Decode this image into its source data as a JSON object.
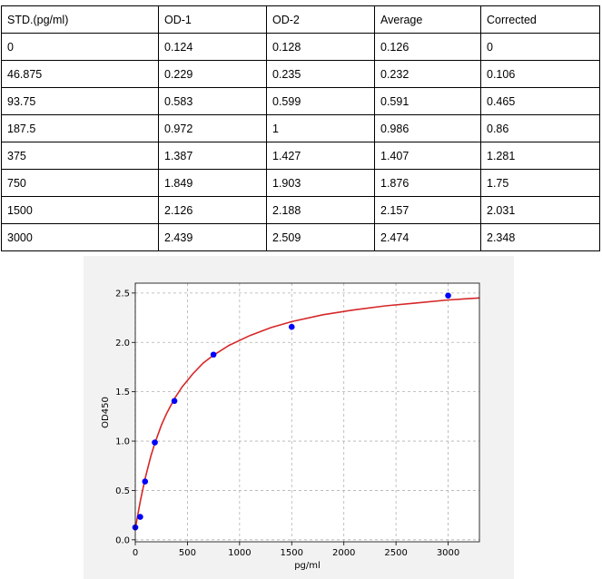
{
  "table": {
    "headers": [
      "STD.(pg/ml)",
      "OD-1",
      "OD-2",
      "Average",
      "Corrected"
    ],
    "rows": [
      [
        "0",
        "0.124",
        "0.128",
        "0.126",
        "0"
      ],
      [
        "46.875",
        "0.229",
        "0.235",
        "0.232",
        "0.106"
      ],
      [
        "93.75",
        "0.583",
        "0.599",
        "0.591",
        "0.465"
      ],
      [
        "187.5",
        "0.972",
        "1",
        "0.986",
        "0.86"
      ],
      [
        "375",
        "1.387",
        "1.427",
        "1.407",
        "1.281"
      ],
      [
        "750",
        "1.849",
        "1.903",
        "1.876",
        "1.75"
      ],
      [
        "1500",
        "2.126",
        "2.188",
        "2.157",
        "2.031"
      ],
      [
        "3000",
        "2.439",
        "2.509",
        "2.474",
        "2.348"
      ]
    ]
  },
  "chart_data": {
    "type": "scatter",
    "title": "",
    "xlabel": "pg/ml",
    "ylabel": "OD450",
    "xlim": [
      0,
      3300
    ],
    "ylim": [
      -0.02,
      2.6
    ],
    "xticks": [
      0,
      500,
      1000,
      1500,
      2000,
      2500,
      3000
    ],
    "xtick_labels": [
      "0",
      "500",
      "1000",
      "1500",
      "2000",
      "2500",
      "3000"
    ],
    "yticks": [
      0.0,
      0.5,
      1.0,
      1.5,
      2.0,
      2.5
    ],
    "ytick_labels": [
      "0.0",
      "0.5",
      "1.0",
      "1.5",
      "2.0",
      "2.5"
    ],
    "grid": true,
    "points": {
      "x": [
        0,
        46.875,
        93.75,
        187.5,
        375,
        750,
        1500,
        3000
      ],
      "y": [
        0.126,
        0.232,
        0.591,
        0.986,
        1.407,
        1.876,
        2.157,
        2.474
      ],
      "color": "#0000ff"
    },
    "fit_curve": {
      "x": [
        0,
        25,
        50,
        94,
        150,
        188,
        250,
        300,
        375,
        450,
        550,
        650,
        750,
        900,
        1100,
        1300,
        1500,
        1800,
        2100,
        2400,
        2700,
        3000,
        3300
      ],
      "y": [
        0.11,
        0.26,
        0.4,
        0.62,
        0.85,
        0.98,
        1.16,
        1.28,
        1.43,
        1.55,
        1.68,
        1.79,
        1.87,
        1.97,
        2.07,
        2.15,
        2.21,
        2.28,
        2.33,
        2.37,
        2.4,
        2.43,
        2.45
      ],
      "color": "#d62728"
    }
  }
}
